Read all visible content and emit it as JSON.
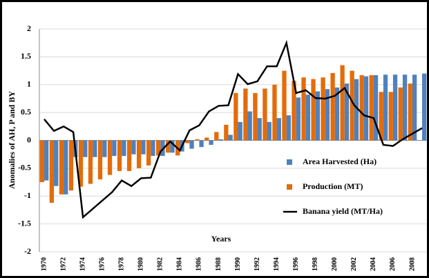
{
  "chart_data": {
    "type": "bar-line",
    "x_label": "Years",
    "y_label": "Anomalies of AH, P and BY",
    "categories": [
      "1970",
      null,
      "1972",
      null,
      "1974",
      null,
      "1976",
      null,
      "1978",
      null,
      "1980",
      null,
      "1982",
      null,
      "1984",
      null,
      "1986",
      null,
      "1988",
      null,
      "1990",
      null,
      "1992",
      null,
      "1994",
      null,
      "1996",
      null,
      "1998",
      null,
      "2000",
      null,
      "2002",
      null,
      "2004",
      null,
      "2006",
      null,
      "2008",
      null
    ],
    "series": [
      {
        "name": "Area Harvested (Ha)",
        "color": "#4f81bd",
        "kind": "bar",
        "values": [
          -0.72,
          -0.82,
          -0.97,
          -0.3,
          -0.3,
          -0.3,
          -0.3,
          -0.28,
          -0.28,
          -0.25,
          -0.25,
          -0.28,
          -0.28,
          -0.22,
          -0.2,
          -0.15,
          -0.12,
          -0.08,
          0.02,
          0.1,
          0.33,
          0.52,
          0.4,
          0.33,
          0.4,
          0.45,
          0.77,
          0.82,
          0.88,
          0.92,
          0.95,
          1.02,
          1.1,
          1.15,
          1.17,
          1.18,
          1.18,
          1.18,
          1.18,
          1.2
        ]
      },
      {
        "name": "Production (MT)",
        "color": "#e36c0a",
        "kind": "bar",
        "values": [
          -0.75,
          -1.12,
          -0.97,
          -0.9,
          -0.83,
          -0.78,
          -0.7,
          -0.62,
          -0.55,
          -0.55,
          -0.5,
          -0.45,
          -0.27,
          -0.22,
          -0.27,
          -0.05,
          0.02,
          0.05,
          0.15,
          0.28,
          0.85,
          0.93,
          0.85,
          0.93,
          1.0,
          1.25,
          1.07,
          1.13,
          1.1,
          1.13,
          1.21,
          1.35,
          1.25,
          1.17,
          1.17,
          0.87,
          0.87,
          0.95,
          1.02,
          null
        ]
      },
      {
        "name": "Banana yield (MT/Ha)",
        "color": "#000000",
        "kind": "line",
        "values": [
          0.38,
          0.17,
          0.25,
          0.15,
          -1.38,
          -1.23,
          -1.08,
          -0.93,
          -0.72,
          -0.82,
          -0.68,
          -0.67,
          -0.2,
          -0.02,
          -0.18,
          0.18,
          0.27,
          0.52,
          0.62,
          0.63,
          1.19,
          1.01,
          1.06,
          1.33,
          1.33,
          1.75,
          0.85,
          0.9,
          0.76,
          0.75,
          0.8,
          0.94,
          0.63,
          0.45,
          0.4,
          -0.08,
          -0.1,
          0.02,
          0.12,
          0.22
        ]
      }
    ],
    "ylim": [
      -2,
      2
    ],
    "yticks": [
      -2,
      -1.5,
      -1,
      -0.5,
      0,
      0.5,
      1,
      1.5,
      2
    ],
    "grid": true
  }
}
